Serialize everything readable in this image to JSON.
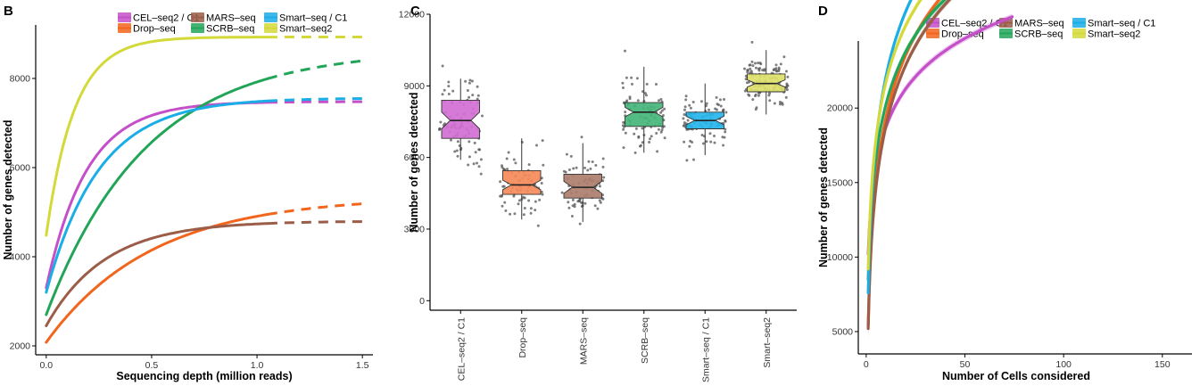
{
  "chart_data": [
    {
      "panel": "B",
      "type": "line",
      "xlabel": "Sequencing depth (million reads)",
      "ylabel": "Number of genes detected",
      "xlim": [
        -0.05,
        1.55
      ],
      "ylim": [
        1800,
        9200
      ],
      "xticks": [
        "0.0",
        "0.5",
        "1.0",
        "1.5"
      ],
      "yticks": [
        "2000",
        "4000",
        "6000",
        "8000"
      ],
      "solid_until": 1.05,
      "grid": false,
      "legend_position": "top",
      "series": [
        {
          "name": "CEL–seq2 / C1",
          "color": "#C44FC9",
          "y0": 3300,
          "ymax": 7480,
          "k": 5.2
        },
        {
          "name": "Drop–seq",
          "color": "#F2651D",
          "y0": 2080,
          "ymax": 5350,
          "k": 2.0
        },
        {
          "name": "MARS–seq",
          "color": "#9B5D48",
          "y0": 2450,
          "ymax": 4800,
          "k": 3.6
        },
        {
          "name": "SCRB–seq",
          "color": "#22A559",
          "y0": 2700,
          "ymax": 8650,
          "k": 2.1
        },
        {
          "name": "Smart–seq / C1",
          "color": "#1AADE6",
          "y0": 3200,
          "ymax": 7560,
          "k": 4.0
        },
        {
          "name": "Smart–seq2",
          "color": "#D4D93A",
          "y0": 4480,
          "ymax": 8930,
          "k": 7.5
        }
      ]
    },
    {
      "panel": "C",
      "type": "box",
      "xlabel": "",
      "ylabel": "Number of genes detected",
      "ylim": [
        -400,
        12000
      ],
      "yticks": [
        "0",
        "3000",
        "6000",
        "9000",
        "12000"
      ],
      "categories": [
        "CEL–seq2 / C1",
        "Drop–seq",
        "MARS–seq",
        "SCRB–seq",
        "Smart–seq / C1",
        "Smart–seq2"
      ],
      "boxes": [
        {
          "q1": 6800,
          "median": 7550,
          "q3": 8400,
          "whisker_low": 5900,
          "whisker_high": 9300,
          "notch": 350,
          "color": "#D26FD5",
          "n_points": 90
        },
        {
          "q1": 4450,
          "median": 4850,
          "q3": 5450,
          "whisker_low": 3400,
          "whisker_high": 6800,
          "notch": 200,
          "color": "#F58A5A",
          "n_points": 80
        },
        {
          "q1": 4300,
          "median": 4750,
          "q3": 5300,
          "whisker_low": 3300,
          "whisker_high": 6600,
          "notch": 250,
          "color": "#AE7E6E",
          "n_points": 75
        },
        {
          "q1": 7300,
          "median": 7900,
          "q3": 8300,
          "whisker_low": 6200,
          "whisker_high": 9800,
          "notch": 200,
          "color": "#45B57A",
          "n_points": 90
        },
        {
          "q1": 7200,
          "median": 7550,
          "q3": 7900,
          "whisker_low": 6100,
          "whisker_high": 9100,
          "notch": 180,
          "color": "#26B5EC",
          "n_points": 100
        },
        {
          "q1": 8750,
          "median": 9100,
          "q3": 9500,
          "whisker_low": 7800,
          "whisker_high": 10500,
          "notch": 150,
          "color": "#DDE06A",
          "n_points": 120
        }
      ]
    },
    {
      "panel": "D",
      "type": "line",
      "xlabel": "Number of Cells considered",
      "ylabel": "Number of genes detected",
      "xlim": [
        -4,
        165
      ],
      "ylim": [
        3500,
        24500
      ],
      "xticks": [
        "0",
        "50",
        "100",
        "150"
      ],
      "yticks": [
        "5000",
        "10000",
        "15000",
        "20000"
      ],
      "grid": false,
      "legend_position": "top",
      "series": [
        {
          "name": "CEL–seq2 / C1",
          "color": "#C44FC9",
          "xmax": 74,
          "a": 10200,
          "b": 3700
        },
        {
          "name": "Drop–seq",
          "color": "#F2651D",
          "xmax": 75,
          "a": 5400,
          "b": 6060
        },
        {
          "name": "MARS–seq",
          "color": "#9B5D48",
          "xmax": 65,
          "a": 5200,
          "b": 5900
        },
        {
          "name": "SCRB–seq",
          "color": "#22A559",
          "xmax": 82,
          "a": 8500,
          "b": 5100
        },
        {
          "name": "Smart–seq / C1",
          "color": "#1AADE6",
          "xmax": 128,
          "a": 7600,
          "b": 6300
        },
        {
          "name": "Smart–seq2",
          "color": "#D4D93A",
          "xmax": 156,
          "a": 9200,
          "b": 5450
        }
      ]
    }
  ]
}
